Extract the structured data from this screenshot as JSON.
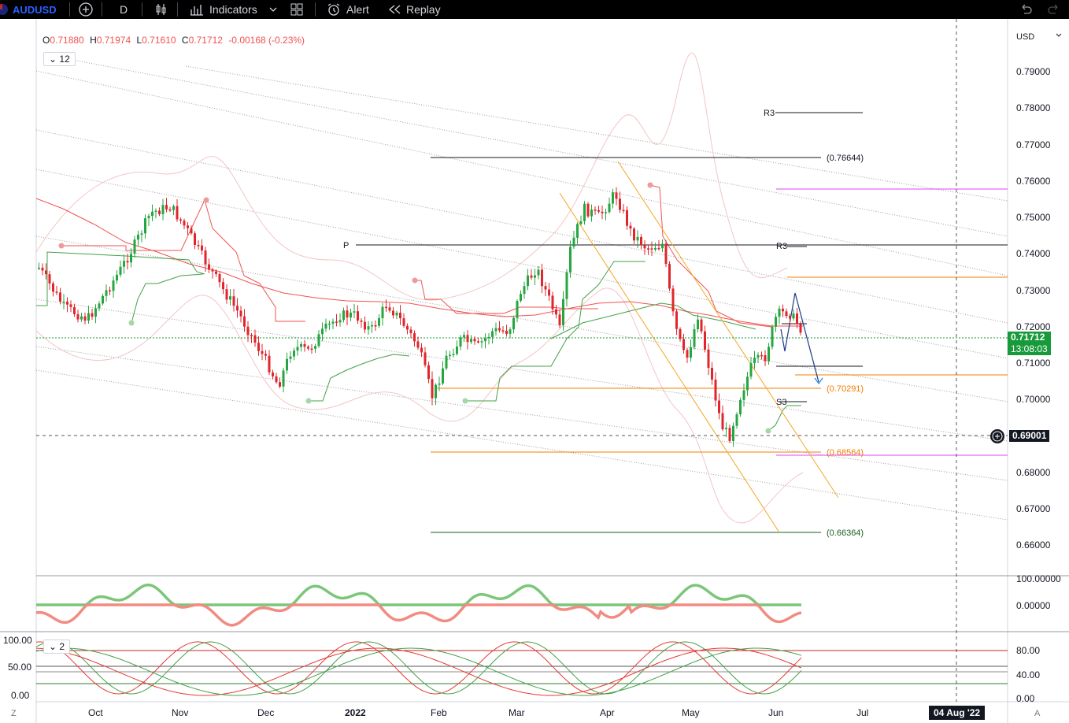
{
  "toolbar": {
    "symbol": "AUDUSD",
    "interval": "D",
    "indicators_label": "Indicators",
    "alert_label": "Alert",
    "replay_label": "Replay"
  },
  "legend": {
    "open_label": "O",
    "open": "0.71880",
    "high_label": "H",
    "high": "0.71974",
    "low_label": "L",
    "low": "0.71610",
    "close_label": "C",
    "close": "0.71712",
    "change": "-0.00168 (-0.23%)",
    "collapsed_count": "12"
  },
  "price_axis": {
    "currency": "USD",
    "ticks": [
      "0.79000",
      "0.78000",
      "0.77000",
      "0.76000",
      "0.75000",
      "0.74000",
      "0.73000",
      "0.72000",
      "0.71000",
      "0.70000",
      "0.69000",
      "0.68000",
      "0.67000",
      "0.66000"
    ],
    "last_price": "0.71712",
    "countdown": "13:08:03",
    "crosshair_price": "0.69001"
  },
  "time_axis": {
    "labels": [
      "Oct",
      "Nov",
      "Dec",
      "2022",
      "Feb",
      "Mar",
      "Apr",
      "May",
      "Jun",
      "Jul"
    ],
    "crosshair_date": "04 Aug '22",
    "left_corner": "Z",
    "right_corner": "A"
  },
  "annotations": {
    "pivot_p": "P",
    "r3_top": "R3",
    "r3_mid": "R3",
    "s3": "S3",
    "fib_76644": "(0.76644)",
    "fib_70291": "(0.70291)",
    "fib_68564": "(0.68564)",
    "fib_66364": "(0.66364)"
  },
  "oscillator1": {
    "ticks": [
      "100.00000",
      "0.00000"
    ]
  },
  "oscillator2": {
    "collapsed_count": "2",
    "left_ticks": [
      "100.00",
      "50.00",
      "0.00"
    ],
    "right_ticks": [
      "80.00",
      "40.00",
      "0.00"
    ]
  },
  "colors": {
    "bull": "#26a641",
    "bear": "#e0262c",
    "accent": "#2962ff",
    "toolbar_bg": "#000000",
    "last_price_tag": "#169a3a",
    "fib_orange": "#f57c00",
    "magenta": "#e040fb"
  }
}
